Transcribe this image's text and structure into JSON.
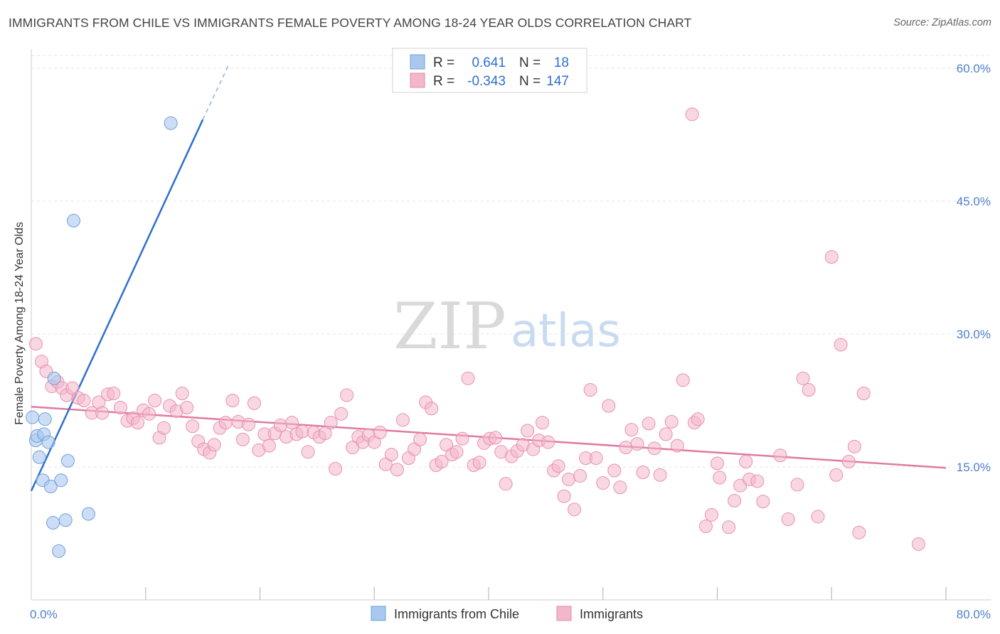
{
  "title": "IMMIGRANTS FROM CHILE VS IMMIGRANTS FEMALE POVERTY AMONG 18-24 YEAR OLDS CORRELATION CHART",
  "source": "Source: ZipAtlas.com",
  "watermark": {
    "zip": "ZIP",
    "atlas": "atlas"
  },
  "legend_top": {
    "rows": [
      {
        "r_label": "R =",
        "r_value": "0.641",
        "n_label": "N =",
        "n_value": "18",
        "color": "#a9c8ef"
      },
      {
        "r_label": "R =",
        "r_value": "-0.343",
        "n_label": "N =",
        "n_value": "147",
        "color": "#f4b6cb"
      }
    ]
  },
  "legend_bottom": [
    {
      "label": "Immigrants from Chile",
      "color": "#a9c8ef"
    },
    {
      "label": "Immigrants",
      "color": "#f4b6cb"
    }
  ],
  "chart_data": {
    "type": "scatter",
    "title": "IMMIGRANTS FROM CHILE VS IMMIGRANTS FEMALE POVERTY AMONG 18-24 YEAR OLDS CORRELATION CHART",
    "xlabel": "",
    "ylabel": "Female Poverty Among 18-24 Year Olds",
    "xlim": [
      0,
      80
    ],
    "ylim": [
      0,
      65
    ],
    "x_tick_labels": [
      "0.0%",
      "80.0%"
    ],
    "y_ticks": [
      15,
      30,
      45,
      60
    ],
    "y_tick_labels": [
      "15.0%",
      "30.0%",
      "45.0%",
      "60.0%"
    ],
    "grid": true,
    "legend_position": "top-center",
    "colors": {
      "chile": "#a9c8ef",
      "chile_line": "#2f6fd0",
      "immigrants": "#f4b6cb",
      "immigrants_line": "#e07aa0"
    },
    "series": [
      {
        "name": "Immigrants from Chile",
        "r": 0.641,
        "n": 18,
        "trend": {
          "x": [
            0,
            15
          ],
          "y": [
            12.3,
            54.2
          ],
          "dashed_to": [
            17.2,
            60.2
          ]
        },
        "points": [
          [
            0.1,
            20.6
          ],
          [
            0.4,
            18.0
          ],
          [
            0.5,
            18.5
          ],
          [
            0.7,
            16.1
          ],
          [
            1.0,
            13.5
          ],
          [
            1.1,
            18.7
          ],
          [
            1.2,
            20.4
          ],
          [
            1.5,
            17.8
          ],
          [
            1.7,
            12.8
          ],
          [
            1.9,
            8.7
          ],
          [
            2.0,
            25.0
          ],
          [
            2.4,
            5.5
          ],
          [
            2.6,
            13.5
          ],
          [
            3.0,
            9.0
          ],
          [
            3.2,
            15.7
          ],
          [
            3.7,
            42.8
          ],
          [
            5.0,
            9.7
          ],
          [
            12.2,
            53.8
          ]
        ]
      },
      {
        "name": "Immigrants",
        "r": -0.343,
        "n": 147,
        "trend": {
          "x": [
            0,
            80
          ],
          "y": [
            21.8,
            14.9
          ]
        },
        "points": [
          [
            0.4,
            28.9
          ],
          [
            0.9,
            26.9
          ],
          [
            1.3,
            25.8
          ],
          [
            1.8,
            24.1
          ],
          [
            2.3,
            24.6
          ],
          [
            2.7,
            23.9
          ],
          [
            3.1,
            23.1
          ],
          [
            3.6,
            23.9
          ],
          [
            4.1,
            22.8
          ],
          [
            4.6,
            22.5
          ],
          [
            5.3,
            21.1
          ],
          [
            5.9,
            22.3
          ],
          [
            6.2,
            21.1
          ],
          [
            6.7,
            23.2
          ],
          [
            7.2,
            23.3
          ],
          [
            7.8,
            21.7
          ],
          [
            8.4,
            20.2
          ],
          [
            8.9,
            20.5
          ],
          [
            9.3,
            20.0
          ],
          [
            9.8,
            21.4
          ],
          [
            10.3,
            21.0
          ],
          [
            10.8,
            22.5
          ],
          [
            11.2,
            18.3
          ],
          [
            11.6,
            19.4
          ],
          [
            12.1,
            21.9
          ],
          [
            12.7,
            21.3
          ],
          [
            13.2,
            23.3
          ],
          [
            13.6,
            21.7
          ],
          [
            14.1,
            19.6
          ],
          [
            14.6,
            17.9
          ],
          [
            15.1,
            17.0
          ],
          [
            15.6,
            16.6
          ],
          [
            16.0,
            17.5
          ],
          [
            16.5,
            19.4
          ],
          [
            17.0,
            20.0
          ],
          [
            17.6,
            22.5
          ],
          [
            18.1,
            20.1
          ],
          [
            18.5,
            18.1
          ],
          [
            19.0,
            19.8
          ],
          [
            19.5,
            22.2
          ],
          [
            19.9,
            16.9
          ],
          [
            20.4,
            18.7
          ],
          [
            20.8,
            17.4
          ],
          [
            21.3,
            18.8
          ],
          [
            21.8,
            19.7
          ],
          [
            22.3,
            18.4
          ],
          [
            22.8,
            20.0
          ],
          [
            23.2,
            18.7
          ],
          [
            23.7,
            19.0
          ],
          [
            24.2,
            16.7
          ],
          [
            24.7,
            18.9
          ],
          [
            25.2,
            18.4
          ],
          [
            25.7,
            18.8
          ],
          [
            26.2,
            20.0
          ],
          [
            26.6,
            14.8
          ],
          [
            27.1,
            21.0
          ],
          [
            27.6,
            23.1
          ],
          [
            28.1,
            17.2
          ],
          [
            28.6,
            18.4
          ],
          [
            29.0,
            17.8
          ],
          [
            29.5,
            18.6
          ],
          [
            30.0,
            17.8
          ],
          [
            30.5,
            18.9
          ],
          [
            31.0,
            15.3
          ],
          [
            31.5,
            16.4
          ],
          [
            32.0,
            14.7
          ],
          [
            32.5,
            20.3
          ],
          [
            33.0,
            16.0
          ],
          [
            33.5,
            17.0
          ],
          [
            34.0,
            18.1
          ],
          [
            34.5,
            22.3
          ],
          [
            35.0,
            21.6
          ],
          [
            35.4,
            15.2
          ],
          [
            35.9,
            15.6
          ],
          [
            36.3,
            17.5
          ],
          [
            36.8,
            16.4
          ],
          [
            37.2,
            16.7
          ],
          [
            37.7,
            18.2
          ],
          [
            38.2,
            25.0
          ],
          [
            38.7,
            15.2
          ],
          [
            39.2,
            15.5
          ],
          [
            39.6,
            17.7
          ],
          [
            40.1,
            18.2
          ],
          [
            40.6,
            18.3
          ],
          [
            41.1,
            16.7
          ],
          [
            41.5,
            13.1
          ],
          [
            42.0,
            16.2
          ],
          [
            42.5,
            16.8
          ],
          [
            43.0,
            17.5
          ],
          [
            43.4,
            19.1
          ],
          [
            43.9,
            17.0
          ],
          [
            44.4,
            18.0
          ],
          [
            44.7,
            20.0
          ],
          [
            45.2,
            17.8
          ],
          [
            45.7,
            14.6
          ],
          [
            46.1,
            15.1
          ],
          [
            46.6,
            11.7
          ],
          [
            47.0,
            13.6
          ],
          [
            47.5,
            10.2
          ],
          [
            48.0,
            14.0
          ],
          [
            48.5,
            16.0
          ],
          [
            48.9,
            23.7
          ],
          [
            49.4,
            16.0
          ],
          [
            50.0,
            13.2
          ],
          [
            50.5,
            21.9
          ],
          [
            51.0,
            14.6
          ],
          [
            51.5,
            12.7
          ],
          [
            52.0,
            17.2
          ],
          [
            52.5,
            19.2
          ],
          [
            53.0,
            17.6
          ],
          [
            53.5,
            14.4
          ],
          [
            54.0,
            19.9
          ],
          [
            54.5,
            17.1
          ],
          [
            55.0,
            14.1
          ],
          [
            55.5,
            18.7
          ],
          [
            56.0,
            20.1
          ],
          [
            56.5,
            17.4
          ],
          [
            57.0,
            24.8
          ],
          [
            57.8,
            54.8
          ],
          [
            58.0,
            20.0
          ],
          [
            58.3,
            20.4
          ],
          [
            59.0,
            8.3
          ],
          [
            59.5,
            9.6
          ],
          [
            60.0,
            15.4
          ],
          [
            60.2,
            13.8
          ],
          [
            61.0,
            8.2
          ],
          [
            61.5,
            11.2
          ],
          [
            62.0,
            12.9
          ],
          [
            62.5,
            15.6
          ],
          [
            62.8,
            13.6
          ],
          [
            63.5,
            13.4
          ],
          [
            64.0,
            11.1
          ],
          [
            65.5,
            16.3
          ],
          [
            66.2,
            9.1
          ],
          [
            67.0,
            13.0
          ],
          [
            67.5,
            25.0
          ],
          [
            68.0,
            23.7
          ],
          [
            68.8,
            9.4
          ],
          [
            70.0,
            38.7
          ],
          [
            70.4,
            14.1
          ],
          [
            70.8,
            28.8
          ],
          [
            71.5,
            15.6
          ],
          [
            72.0,
            17.3
          ],
          [
            72.4,
            7.6
          ],
          [
            72.8,
            23.3
          ],
          [
            77.6,
            6.3
          ]
        ]
      }
    ]
  }
}
